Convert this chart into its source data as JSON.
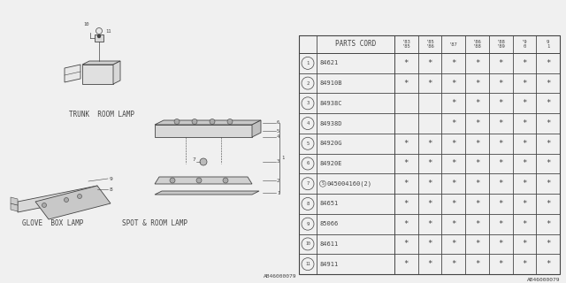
{
  "bg_color": "#f0f0f0",
  "line_color": "#444444",
  "parts": [
    {
      "num": "1",
      "code": "84621",
      "cols": [
        1,
        1,
        1,
        1,
        1,
        1,
        1
      ]
    },
    {
      "num": "2",
      "code": "84910B",
      "cols": [
        1,
        1,
        1,
        1,
        1,
        1,
        1
      ]
    },
    {
      "num": "3",
      "code": "84938C",
      "cols": [
        0,
        0,
        1,
        1,
        1,
        1,
        1
      ]
    },
    {
      "num": "4",
      "code": "84938D",
      "cols": [
        0,
        0,
        1,
        1,
        1,
        1,
        1
      ]
    },
    {
      "num": "5",
      "code": "84920G",
      "cols": [
        1,
        1,
        1,
        1,
        1,
        1,
        1
      ]
    },
    {
      "num": "6",
      "code": "84920E",
      "cols": [
        1,
        1,
        1,
        1,
        1,
        1,
        1
      ]
    },
    {
      "num": "7",
      "code": "S045004160(2)",
      "cols": [
        1,
        1,
        1,
        1,
        1,
        1,
        1
      ]
    },
    {
      "num": "8",
      "code": "84651",
      "cols": [
        1,
        1,
        1,
        1,
        1,
        1,
        1
      ]
    },
    {
      "num": "9",
      "code": "85066",
      "cols": [
        1,
        1,
        1,
        1,
        1,
        1,
        1
      ]
    },
    {
      "num": "10",
      "code": "84611",
      "cols": [
        1,
        1,
        1,
        1,
        1,
        1,
        1
      ]
    },
    {
      "num": "11",
      "code": "84911",
      "cols": [
        1,
        1,
        1,
        1,
        1,
        1,
        1
      ]
    }
  ],
  "col_headers": [
    "'83\n'85",
    "'85\n'86",
    "'87",
    "'86\n'88",
    "'88\n'89",
    "'9\n0",
    "9\n1"
  ],
  "footer_text": "AB46000079",
  "label_trunk_room": "TRUNK  ROOM LAMP",
  "label_glove": "GLOVE  BOX LAMP",
  "label_spot": "SPOT & ROOM LAMP"
}
